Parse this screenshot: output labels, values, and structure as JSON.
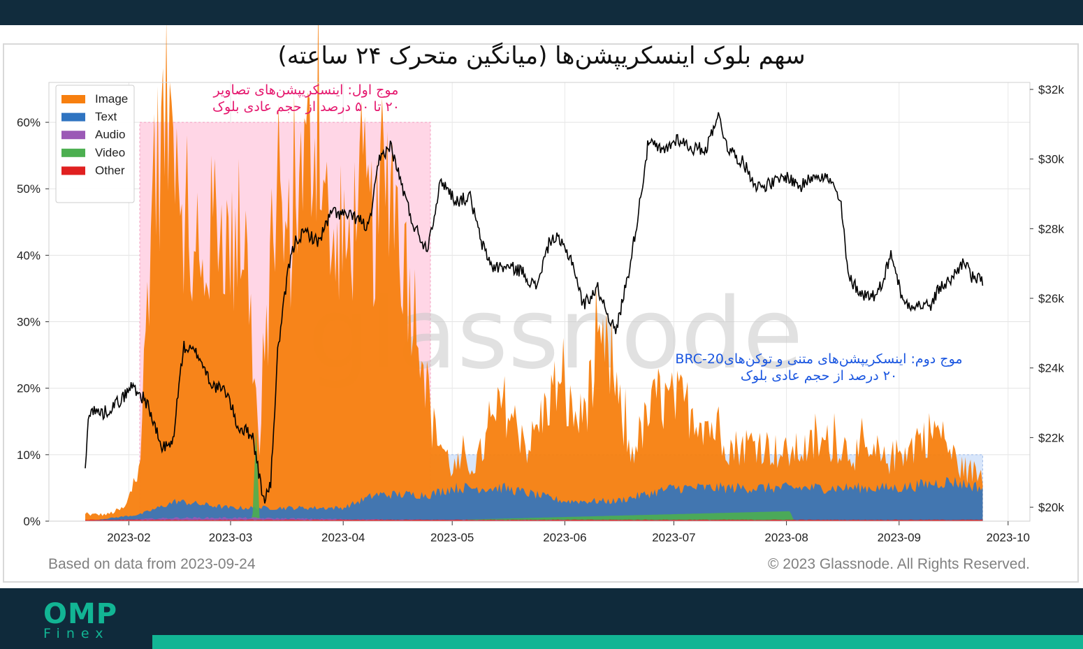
{
  "chart_data": {
    "type": "area",
    "title": "سهم بلوک اینسکریپشن‌ها (میانگین متحرک ۲۴ ساعته)",
    "x_ticks": [
      "2023-02",
      "2023-03",
      "2023-04",
      "2023-05",
      "2023-06",
      "2023-07",
      "2023-08",
      "2023-09",
      "2023-10"
    ],
    "y_left_ticks": [
      "0%",
      "10%",
      "20%",
      "30%",
      "40%",
      "50%",
      "60%"
    ],
    "y_left_range": [
      0,
      0.66
    ],
    "y_right_ticks": [
      "$20k",
      "$22k",
      "$24k",
      "$26k",
      "$28k",
      "$30k",
      "$32k"
    ],
    "y_right_range": [
      19600,
      32200
    ],
    "x_range": [
      "2023-01-10",
      "2023-10-07"
    ],
    "grid": true,
    "legend_position": "top-left",
    "legend": [
      {
        "name": "Image",
        "color": "#f77f0f"
      },
      {
        "name": "Text",
        "color": "#2f74c1"
      },
      {
        "name": "Audio",
        "color": "#9b59b6"
      },
      {
        "name": "Video",
        "color": "#4caf50"
      },
      {
        "name": "Other",
        "color": "#e02020"
      }
    ],
    "price_color": "#000000",
    "series": [
      {
        "name": "Image",
        "x": [
          "2023-01-20",
          "2023-01-26",
          "2023-01-31",
          "2023-02-04",
          "2023-02-07",
          "2023-02-10",
          "2023-02-14",
          "2023-02-17",
          "2023-02-21",
          "2023-02-25",
          "2023-03-01",
          "2023-03-05",
          "2023-03-09",
          "2023-03-13",
          "2023-03-17",
          "2023-03-21",
          "2023-03-25",
          "2023-03-29",
          "2023-04-02",
          "2023-04-06",
          "2023-04-10",
          "2023-04-14",
          "2023-04-18",
          "2023-04-22",
          "2023-04-25",
          "2023-05-01",
          "2023-05-08",
          "2023-05-15",
          "2023-05-22",
          "2023-05-29",
          "2023-06-05",
          "2023-06-12",
          "2023-06-19",
          "2023-06-26",
          "2023-07-03",
          "2023-07-10",
          "2023-07-17",
          "2023-07-24",
          "2023-07-31",
          "2023-08-07",
          "2023-08-14",
          "2023-08-21",
          "2023-08-28",
          "2023-09-04",
          "2023-09-11",
          "2023-09-18",
          "2023-09-24"
        ],
        "values": [
          0.01,
          0.01,
          0.02,
          0.08,
          0.45,
          0.58,
          0.62,
          0.4,
          0.35,
          0.48,
          0.4,
          0.43,
          0.1,
          0.46,
          0.42,
          0.52,
          0.6,
          0.38,
          0.4,
          0.5,
          0.42,
          0.55,
          0.37,
          0.3,
          0.15,
          0.08,
          0.09,
          0.18,
          0.11,
          0.2,
          0.15,
          0.26,
          0.1,
          0.18,
          0.18,
          0.15,
          0.11,
          0.12,
          0.1,
          0.11,
          0.12,
          0.1,
          0.09,
          0.11,
          0.14,
          0.08,
          0.07
        ]
      },
      {
        "name": "Text",
        "x": [
          "2023-01-20",
          "2023-02-04",
          "2023-02-14",
          "2023-03-01",
          "2023-03-15",
          "2023-04-01",
          "2023-04-10",
          "2023-04-25",
          "2023-05-01",
          "2023-05-15",
          "2023-06-01",
          "2023-06-15",
          "2023-07-01",
          "2023-07-15",
          "2023-08-01",
          "2023-08-15",
          "2023-09-01",
          "2023-09-15",
          "2023-09-24"
        ],
        "values": [
          0.0,
          0.01,
          0.03,
          0.02,
          0.02,
          0.02,
          0.04,
          0.04,
          0.05,
          0.05,
          0.03,
          0.03,
          0.05,
          0.05,
          0.05,
          0.05,
          0.05,
          0.06,
          0.05
        ]
      },
      {
        "name": "Audio",
        "x": [
          "2023-01-20",
          "2023-02-14",
          "2023-03-01",
          "2023-04-01",
          "2023-04-25",
          "2023-09-24"
        ],
        "values": [
          0.0,
          0.005,
          0.005,
          0.003,
          0.002,
          0.001
        ]
      },
      {
        "name": "Video",
        "x": [
          "2023-01-20",
          "2023-03-07",
          "2023-03-08",
          "2023-03-09",
          "2023-04-25",
          "2023-08-02",
          "2023-08-03",
          "2023-09-24"
        ],
        "values": [
          0.0,
          0.001,
          0.14,
          0.001,
          0.001,
          0.015,
          0.001,
          0.001
        ]
      },
      {
        "name": "Other",
        "x": [
          "2023-01-20",
          "2023-09-24"
        ],
        "values": [
          0.002,
          0.002
        ]
      }
    ],
    "price": {
      "x": [
        "2023-01-20",
        "2023-01-21",
        "2023-01-25",
        "2023-01-30",
        "2023-02-02",
        "2023-02-06",
        "2023-02-10",
        "2023-02-13",
        "2023-02-16",
        "2023-02-20",
        "2023-02-24",
        "2023-02-28",
        "2023-03-03",
        "2023-03-07",
        "2023-03-10",
        "2023-03-12",
        "2023-03-14",
        "2023-03-17",
        "2023-03-19",
        "2023-03-22",
        "2023-03-25",
        "2023-03-29",
        "2023-04-01",
        "2023-04-05",
        "2023-04-08",
        "2023-04-11",
        "2023-04-14",
        "2023-04-17",
        "2023-04-20",
        "2023-04-24",
        "2023-04-28",
        "2023-05-02",
        "2023-05-06",
        "2023-05-09",
        "2023-05-12",
        "2023-05-16",
        "2023-05-20",
        "2023-05-24",
        "2023-05-28",
        "2023-05-30",
        "2023-06-03",
        "2023-06-06",
        "2023-06-10",
        "2023-06-15",
        "2023-06-19",
        "2023-06-21",
        "2023-06-24",
        "2023-06-28",
        "2023-07-02",
        "2023-07-06",
        "2023-07-10",
        "2023-07-13",
        "2023-07-16",
        "2023-07-20",
        "2023-07-24",
        "2023-07-28",
        "2023-08-01",
        "2023-08-05",
        "2023-08-09",
        "2023-08-13",
        "2023-08-16",
        "2023-08-18",
        "2023-08-22",
        "2023-08-26",
        "2023-08-30",
        "2023-09-02",
        "2023-09-06",
        "2023-09-10",
        "2023-09-12",
        "2023-09-15",
        "2023-09-19",
        "2023-09-21",
        "2023-09-24"
      ],
      "values": [
        21000,
        22800,
        22700,
        23100,
        23500,
        23000,
        21700,
        21800,
        24600,
        24400,
        23500,
        23300,
        22300,
        22100,
        20200,
        20600,
        24500,
        26900,
        27700,
        27900,
        27600,
        28500,
        28400,
        28300,
        28000,
        30000,
        30400,
        29300,
        28200,
        27400,
        29400,
        28800,
        28900,
        27600,
        26900,
        26900,
        26800,
        26300,
        27700,
        27700,
        27100,
        25800,
        26300,
        25000,
        27000,
        28300,
        30500,
        30200,
        30600,
        30300,
        30300,
        31300,
        30300,
        29900,
        29200,
        29300,
        29500,
        29200,
        29600,
        29400,
        28700,
        26600,
        26100,
        26100,
        27300,
        25900,
        25800,
        25800,
        26300,
        26500,
        27100,
        26600,
        26500
      ]
    }
  },
  "annotations": {
    "wave1_line1": "موج اول: اینسکریپشن‌های تصاویر",
    "wave1_line2": "۲۰ تا ۵۰ درصد از حجم عادی بلوک",
    "wave2_line1": "موج دوم: اینسکریپشن‌های متنی و توکن‌های‌BRC-20",
    "wave2_line2": "۲۰ درصد از حجم عادی بلوک",
    "wave1_color": "#e5186e",
    "wave2_color": "#1a56e0",
    "wave1_box": {
      "start": "2023-02-04",
      "end": "2023-04-25",
      "y_top": 0.6
    },
    "wave2_box": {
      "start": "2023-04-25",
      "end": "2023-09-24",
      "y_top": 0.1
    }
  },
  "watermark": "glassnode",
  "footer": {
    "left": "Based on data from 2023-09-24",
    "right": "© 2023 Glassnode. All Rights Reserved."
  },
  "brand": {
    "name": "OMP",
    "sub": "Finex",
    "accent": "#12b594"
  }
}
